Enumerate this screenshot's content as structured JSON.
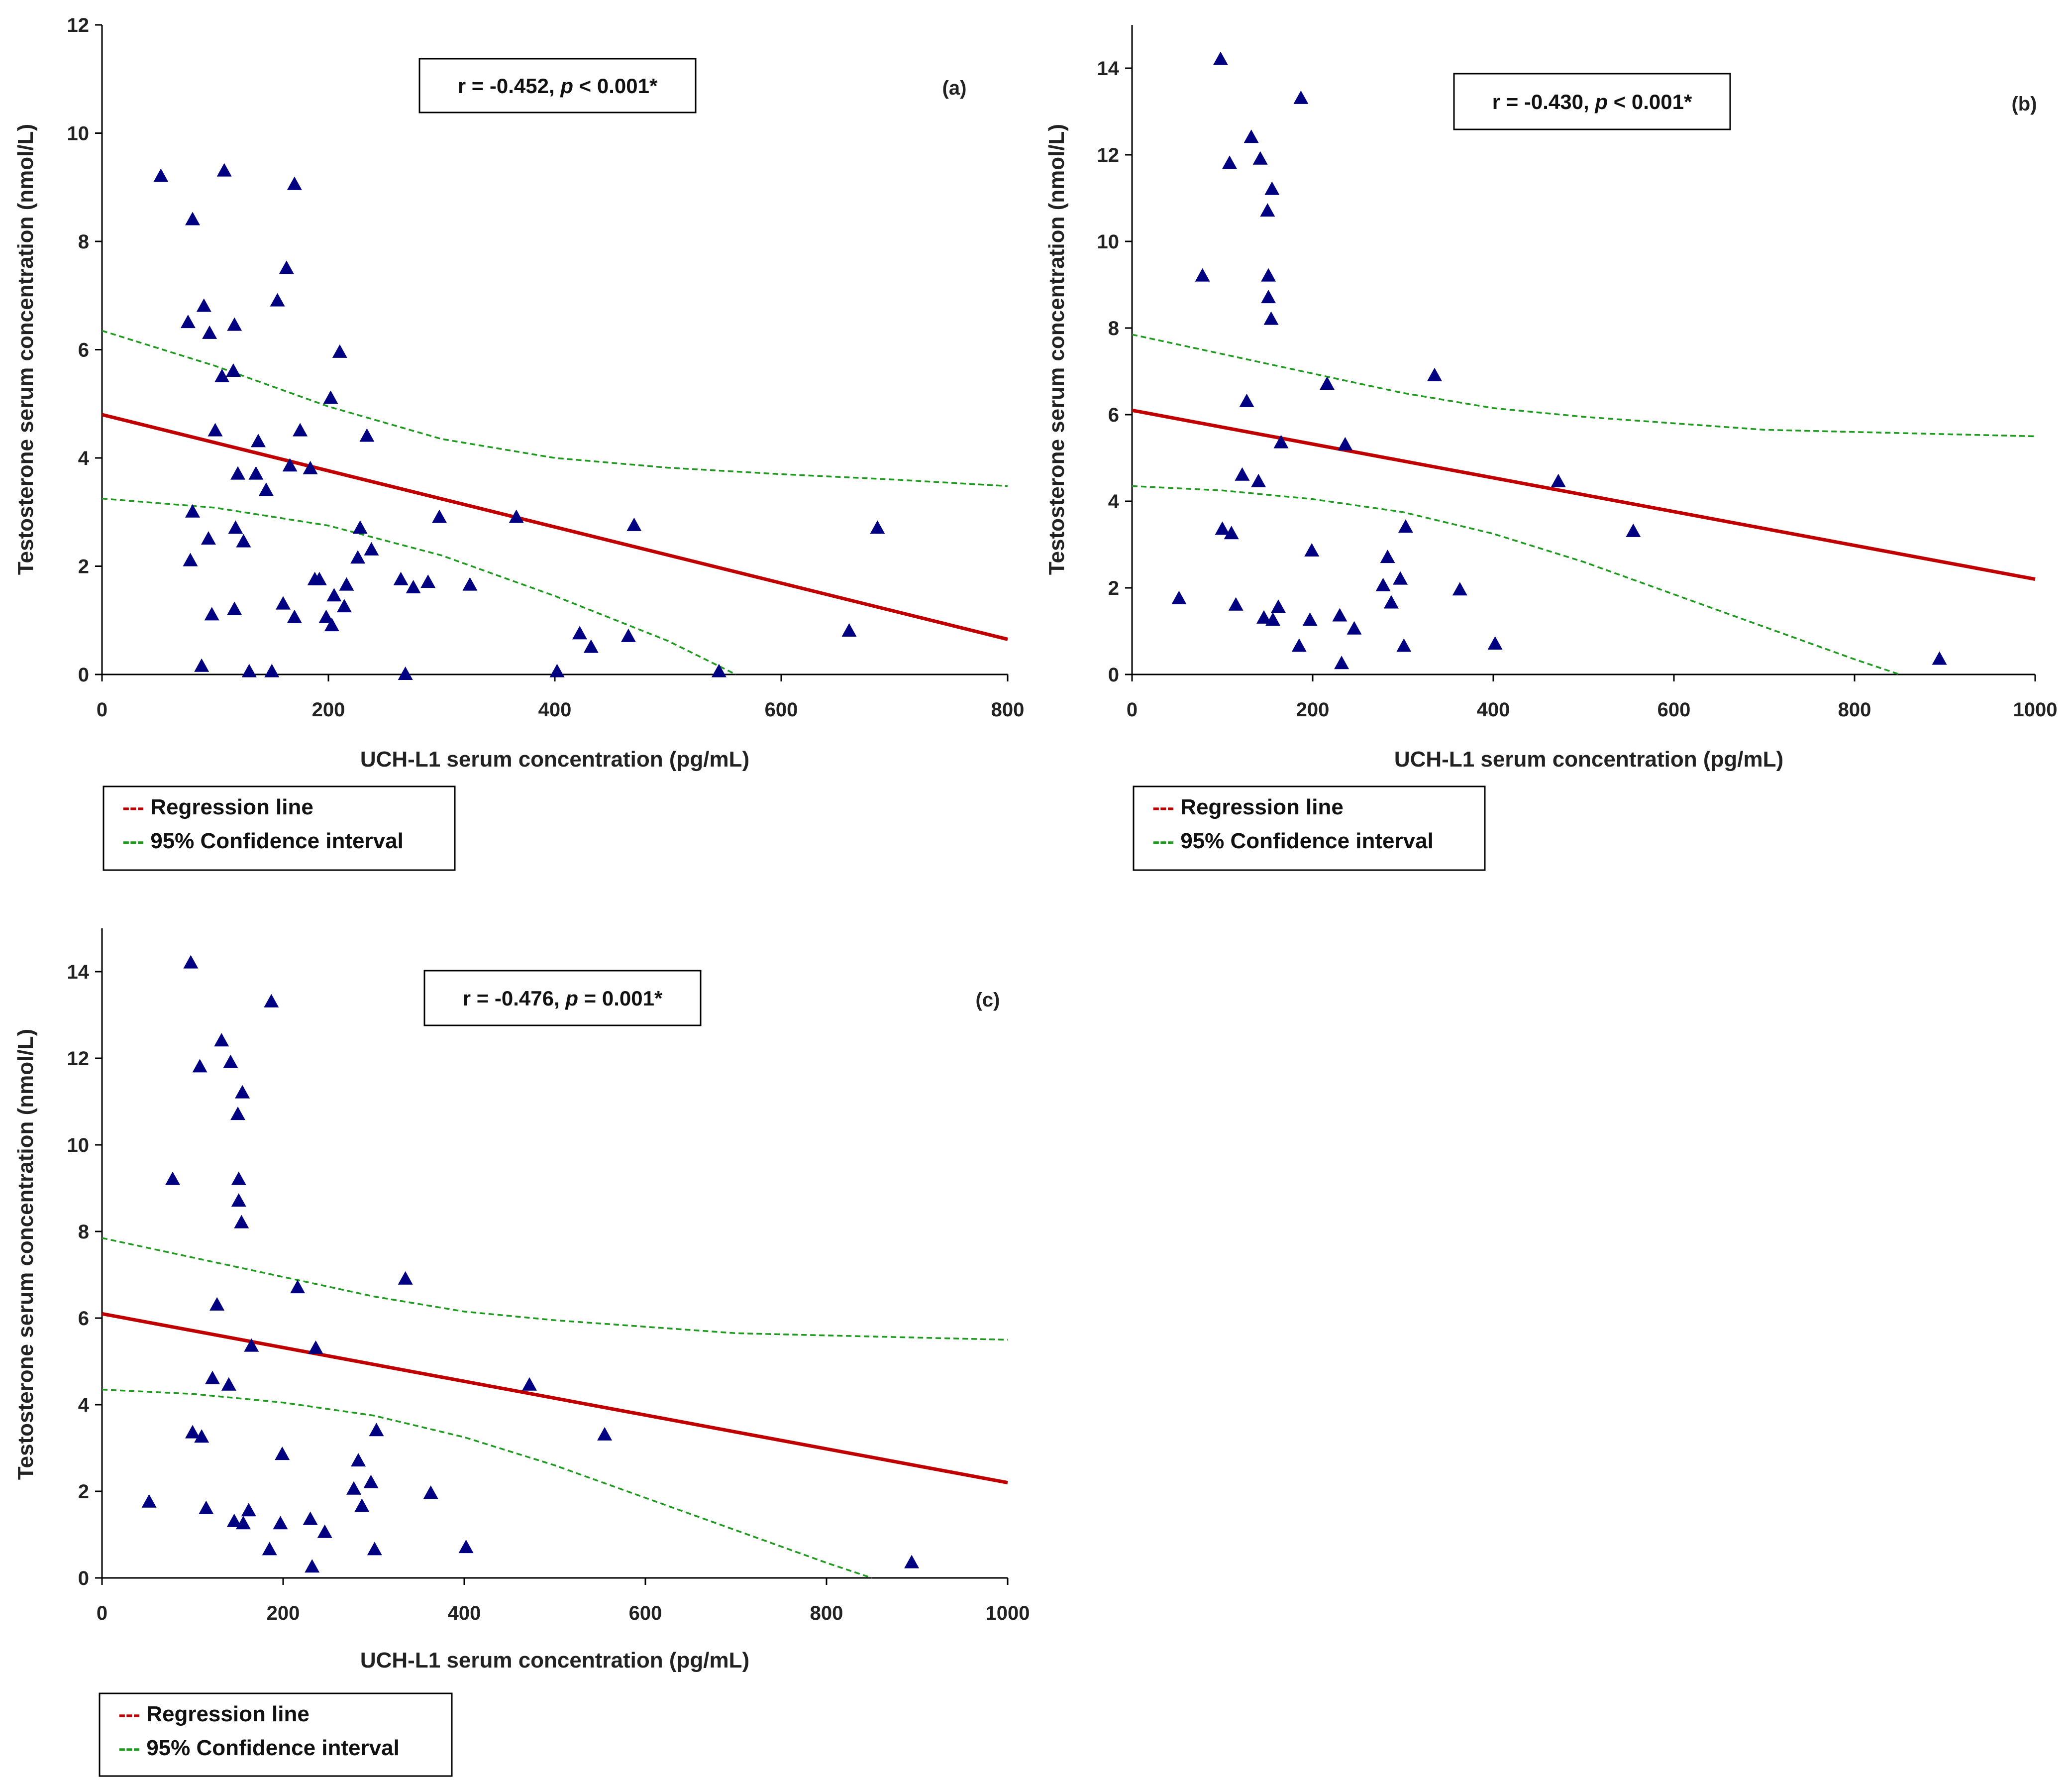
{
  "colors": {
    "point": "#000080",
    "regression": "#c00000",
    "ci": "#1e9a1e"
  },
  "chart_data": [
    {
      "type": "scatter",
      "panel_label": "(a)",
      "stats": {
        "r_text": "r = -0.452,",
        "p_symbol": "p",
        "p_rest": "< 0.001*"
      },
      "xlabel": "UCH-L1 serum concentration (pg/mL)",
      "ylabel": "Testosterone serum concentration (nmol/L)",
      "xlim": [
        0,
        800
      ],
      "ylim": [
        0,
        12
      ],
      "xticks": [
        0,
        200,
        400,
        600,
        800
      ],
      "yticks": [
        0,
        2,
        4,
        6,
        8,
        10,
        12
      ],
      "legend": [
        "--- Regression line",
        "--- 95% Confidence interval"
      ],
      "regression": [
        [
          0,
          4.8
        ],
        [
          800,
          0.65
        ]
      ],
      "ci_upper": [
        [
          0,
          6.35
        ],
        [
          100,
          5.7
        ],
        [
          200,
          4.95
        ],
        [
          300,
          4.35
        ],
        [
          400,
          4.0
        ],
        [
          500,
          3.82
        ],
        [
          600,
          3.7
        ],
        [
          700,
          3.6
        ],
        [
          800,
          3.48
        ]
      ],
      "ci_lower": [
        [
          0,
          3.25
        ],
        [
          100,
          3.08
        ],
        [
          200,
          2.75
        ],
        [
          300,
          2.2
        ],
        [
          400,
          1.45
        ],
        [
          500,
          0.62
        ],
        [
          560,
          0.0
        ]
      ],
      "points": [
        [
          52,
          9.2
        ],
        [
          80,
          8.4
        ],
        [
          76,
          6.5
        ],
        [
          78,
          2.1
        ],
        [
          80,
          3.0
        ],
        [
          88,
          0.15
        ],
        [
          90,
          6.8
        ],
        [
          95,
          6.3
        ],
        [
          94,
          2.5
        ],
        [
          97,
          1.1
        ],
        [
          100,
          4.5
        ],
        [
          106,
          5.5
        ],
        [
          108,
          9.3
        ],
        [
          116,
          5.6
        ],
        [
          117,
          6.45
        ],
        [
          117,
          1.2
        ],
        [
          118,
          2.7
        ],
        [
          120,
          3.7
        ],
        [
          125,
          2.45
        ],
        [
          130,
          0.05
        ],
        [
          136,
          3.7
        ],
        [
          138,
          4.3
        ],
        [
          145,
          3.4
        ],
        [
          150,
          0.05
        ],
        [
          155,
          6.9
        ],
        [
          160,
          1.3
        ],
        [
          163,
          7.5
        ],
        [
          166,
          3.85
        ],
        [
          170,
          1.05
        ],
        [
          170,
          9.05
        ],
        [
          175,
          4.5
        ],
        [
          184,
          3.8
        ],
        [
          188,
          1.75
        ],
        [
          192,
          1.75
        ],
        [
          198,
          1.05
        ],
        [
          202,
          5.1
        ],
        [
          203,
          0.9
        ],
        [
          205,
          1.45
        ],
        [
          210,
          5.95
        ],
        [
          214,
          1.25
        ],
        [
          216,
          1.65
        ],
        [
          226,
          2.15
        ],
        [
          228,
          2.7
        ],
        [
          234,
          4.4
        ],
        [
          238,
          2.3
        ],
        [
          264,
          1.75
        ],
        [
          268,
          0.0
        ],
        [
          275,
          1.6
        ],
        [
          288,
          1.7
        ],
        [
          298,
          2.9
        ],
        [
          325,
          1.65
        ],
        [
          366,
          2.9
        ],
        [
          402,
          0.05
        ],
        [
          422,
          0.75
        ],
        [
          432,
          0.5
        ],
        [
          465,
          0.7
        ],
        [
          470,
          2.75
        ],
        [
          545,
          0.05
        ],
        [
          660,
          0.8
        ],
        [
          685,
          2.7
        ]
      ]
    },
    {
      "type": "scatter",
      "panel_label": "(b)",
      "stats": {
        "r_text": "r = -0.430,",
        "p_symbol": "p",
        "p_rest": "< 0.001*"
      },
      "xlabel": "UCH-L1 serum concentration (pg/mL)",
      "ylabel": "Testosterone serum concentration (nmol/L)",
      "xlim": [
        0,
        1000
      ],
      "ylim": [
        0,
        15
      ],
      "xticks": [
        0,
        200,
        400,
        600,
        800,
        1000
      ],
      "yticks": [
        0,
        2,
        4,
        6,
        8,
        10,
        12,
        14
      ],
      "legend": [
        "--- Regression line",
        "--- 95% Confidence interval"
      ],
      "regression": [
        [
          0,
          6.1
        ],
        [
          1000,
          2.2
        ]
      ],
      "ci_upper": [
        [
          0,
          7.85
        ],
        [
          100,
          7.4
        ],
        [
          200,
          6.95
        ],
        [
          300,
          6.5
        ],
        [
          400,
          6.15
        ],
        [
          500,
          5.95
        ],
        [
          600,
          5.8
        ],
        [
          700,
          5.65
        ],
        [
          800,
          5.6
        ],
        [
          900,
          5.55
        ],
        [
          1000,
          5.5
        ]
      ],
      "ci_lower": [
        [
          0,
          4.35
        ],
        [
          100,
          4.25
        ],
        [
          200,
          4.05
        ],
        [
          300,
          3.75
        ],
        [
          400,
          3.25
        ],
        [
          500,
          2.6
        ],
        [
          600,
          1.85
        ],
        [
          700,
          1.1
        ],
        [
          800,
          0.35
        ],
        [
          850,
          0.0
        ]
      ],
      "points": [
        [
          52,
          1.75
        ],
        [
          78,
          9.2
        ],
        [
          98,
          14.2
        ],
        [
          100,
          3.35
        ],
        [
          108,
          11.8
        ],
        [
          110,
          3.25
        ],
        [
          115,
          1.6
        ],
        [
          122,
          4.6
        ],
        [
          127,
          6.3
        ],
        [
          132,
          12.4
        ],
        [
          140,
          4.45
        ],
        [
          142,
          11.9
        ],
        [
          146,
          1.3
        ],
        [
          150,
          10.7
        ],
        [
          151,
          9.2
        ],
        [
          151,
          8.7
        ],
        [
          154,
          8.2
        ],
        [
          155,
          11.2
        ],
        [
          156,
          1.25
        ],
        [
          162,
          1.55
        ],
        [
          165,
          5.35
        ],
        [
          185,
          0.65
        ],
        [
          187,
          13.3
        ],
        [
          197,
          1.25
        ],
        [
          199,
          2.85
        ],
        [
          216,
          6.7
        ],
        [
          230,
          1.35
        ],
        [
          232,
          0.25
        ],
        [
          236,
          5.3
        ],
        [
          246,
          1.05
        ],
        [
          278,
          2.05
        ],
        [
          283,
          2.7
        ],
        [
          287,
          1.65
        ],
        [
          297,
          2.2
        ],
        [
          301,
          0.65
        ],
        [
          303,
          3.4
        ],
        [
          335,
          6.9
        ],
        [
          363,
          1.95
        ],
        [
          402,
          0.7
        ],
        [
          472,
          4.45
        ],
        [
          555,
          3.3
        ],
        [
          894,
          0.35
        ]
      ]
    },
    {
      "type": "scatter",
      "panel_label": "(c)",
      "stats": {
        "r_text": "r = -0.476,",
        "p_symbol": "p",
        "p_rest": "= 0.001*"
      },
      "xlabel": "UCH-L1 serum concentration (pg/mL)",
      "ylabel": "Testosterone serum concentration (nmol/L)",
      "xlim": [
        0,
        1000
      ],
      "ylim": [
        0,
        15
      ],
      "xticks": [
        0,
        200,
        400,
        600,
        800,
        1000
      ],
      "yticks": [
        0,
        2,
        4,
        6,
        8,
        10,
        12,
        14
      ],
      "legend": [
        "--- Regression line",
        "--- 95% Confidence interval"
      ],
      "regression": [
        [
          0,
          6.1
        ],
        [
          1000,
          2.2
        ]
      ],
      "ci_upper": [
        [
          0,
          7.85
        ],
        [
          100,
          7.4
        ],
        [
          200,
          6.95
        ],
        [
          300,
          6.5
        ],
        [
          400,
          6.15
        ],
        [
          500,
          5.95
        ],
        [
          600,
          5.8
        ],
        [
          700,
          5.65
        ],
        [
          800,
          5.6
        ],
        [
          900,
          5.55
        ],
        [
          1000,
          5.5
        ]
      ],
      "ci_lower": [
        [
          0,
          4.35
        ],
        [
          100,
          4.25
        ],
        [
          200,
          4.05
        ],
        [
          300,
          3.75
        ],
        [
          400,
          3.25
        ],
        [
          500,
          2.6
        ],
        [
          600,
          1.85
        ],
        [
          700,
          1.1
        ],
        [
          800,
          0.35
        ],
        [
          850,
          0.0
        ]
      ],
      "points": [
        [
          52,
          1.75
        ],
        [
          78,
          9.2
        ],
        [
          98,
          14.2
        ],
        [
          100,
          3.35
        ],
        [
          108,
          11.8
        ],
        [
          110,
          3.25
        ],
        [
          115,
          1.6
        ],
        [
          122,
          4.6
        ],
        [
          127,
          6.3
        ],
        [
          132,
          12.4
        ],
        [
          140,
          4.45
        ],
        [
          142,
          11.9
        ],
        [
          146,
          1.3
        ],
        [
          150,
          10.7
        ],
        [
          151,
          9.2
        ],
        [
          151,
          8.7
        ],
        [
          154,
          8.2
        ],
        [
          155,
          11.2
        ],
        [
          156,
          1.25
        ],
        [
          162,
          1.55
        ],
        [
          165,
          5.35
        ],
        [
          185,
          0.65
        ],
        [
          187,
          13.3
        ],
        [
          197,
          1.25
        ],
        [
          199,
          2.85
        ],
        [
          216,
          6.7
        ],
        [
          230,
          1.35
        ],
        [
          232,
          0.25
        ],
        [
          236,
          5.3
        ],
        [
          246,
          1.05
        ],
        [
          278,
          2.05
        ],
        [
          283,
          2.7
        ],
        [
          287,
          1.65
        ],
        [
          297,
          2.2
        ],
        [
          301,
          0.65
        ],
        [
          303,
          3.4
        ],
        [
          335,
          6.9
        ],
        [
          363,
          1.95
        ],
        [
          402,
          0.7
        ],
        [
          472,
          4.45
        ],
        [
          555,
          3.3
        ],
        [
          894,
          0.35
        ]
      ]
    }
  ]
}
